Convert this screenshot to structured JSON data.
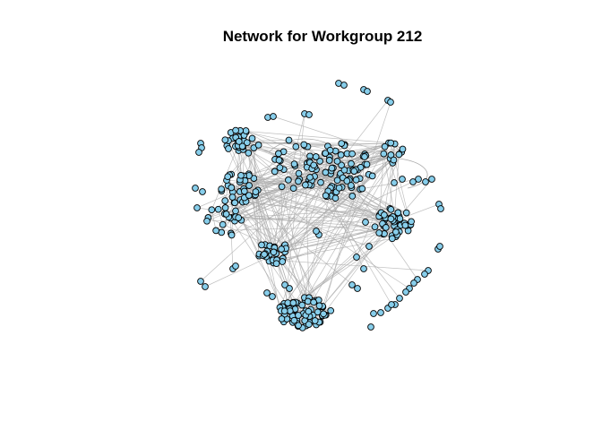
{
  "title": "Network for Workgroup 212",
  "colors": {
    "node_fill": "#87CEEB",
    "node_stroke": "#000000",
    "edge": "#A9A9A9",
    "background": "#FFFFFF"
  },
  "network": {
    "layout": "force-directed",
    "directed": true
  }
}
